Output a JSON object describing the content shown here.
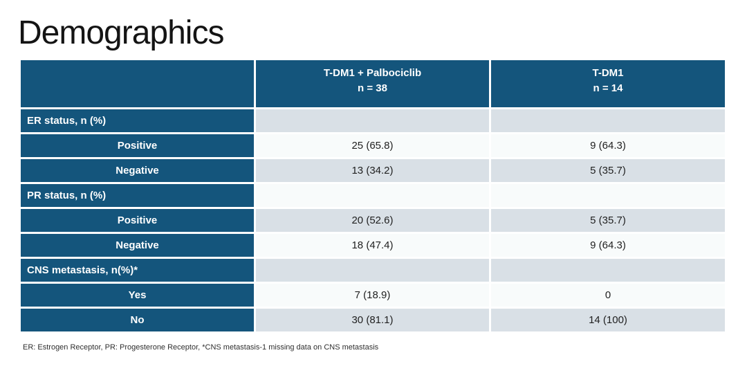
{
  "slide": {
    "title": "Demographics",
    "footnote": "ER: Estrogen Receptor, PR: Progesterone Receptor, *CNS metastasis-1 missing data on CNS metastasis"
  },
  "colors": {
    "header_blue": "#14557C",
    "band_gray": "#D9E0E6",
    "band_light": "#F8FBFB",
    "header_text": "#FFFFFF",
    "body_text": "#1F1F1F"
  },
  "table": {
    "columns": [
      {
        "title": "",
        "subtitle": ""
      },
      {
        "title": "T-DM1 + Palbociclib",
        "subtitle": "n = 38"
      },
      {
        "title": "T-DM1",
        "subtitle": "n = 14"
      }
    ],
    "rows": [
      {
        "kind": "section",
        "label": "ER status, n (%)",
        "values": [
          "",
          ""
        ]
      },
      {
        "kind": "item",
        "label": "Positive",
        "values": [
          "25 (65.8)",
          "9 (64.3)"
        ]
      },
      {
        "kind": "item",
        "label": "Negative",
        "values": [
          "13 (34.2)",
          "5 (35.7)"
        ]
      },
      {
        "kind": "section",
        "label": "PR status, n (%)",
        "values": [
          "",
          ""
        ]
      },
      {
        "kind": "item",
        "label": "Positive",
        "values": [
          "20 (52.6)",
          "5 (35.7)"
        ]
      },
      {
        "kind": "item",
        "label": "Negative",
        "values": [
          "18 (47.4)",
          "9 (64.3)"
        ]
      },
      {
        "kind": "section",
        "label": "CNS metastasis, n(%)*",
        "values": [
          "",
          ""
        ]
      },
      {
        "kind": "item",
        "label": "Yes",
        "values": [
          "7 (18.9)",
          "0"
        ]
      },
      {
        "kind": "item",
        "label": "No",
        "values": [
          "30 (81.1)",
          "14 (100)"
        ]
      }
    ]
  }
}
